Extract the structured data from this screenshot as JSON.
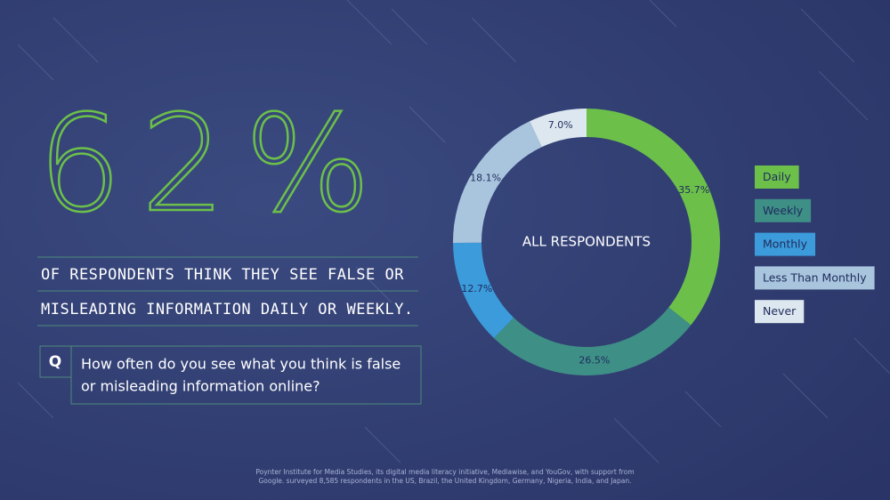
{
  "chart_data": {
    "type": "donut",
    "headline": "62%",
    "subtitle_lines": [
      "OF RESPONDENTS THINK THEY SEE FALSE OR",
      "MISLEADING INFORMATION DAILY OR WEEKLY."
    ],
    "question_marker": "Q",
    "question_lines": [
      "How often do you see what you think is false",
      "or misleading information online?"
    ],
    "center_label": "ALL RESPONDENTS",
    "categories": [
      "Daily",
      "Weekly",
      "Monthly",
      "Less Than Monthly",
      "Never"
    ],
    "values": [
      35.7,
      26.5,
      12.7,
      18.1,
      7.0
    ],
    "value_labels": [
      "35.7%",
      "26.5%",
      "12.7%",
      "18.1%",
      "7.0%"
    ],
    "colors": [
      "#6cc04a",
      "#3e8f86",
      "#3b9bdb",
      "#a9c5de",
      "#dde7ef"
    ],
    "source_lines": [
      "Poynter Institute for Media Studies, its digital media literacy initiative, Mediawise, and YouGov, with support from",
      "Google. surveyed 8,585 respondents in the US, Brazil, the United Kingdom, Germany, Nigeria, India, and Japan."
    ]
  }
}
